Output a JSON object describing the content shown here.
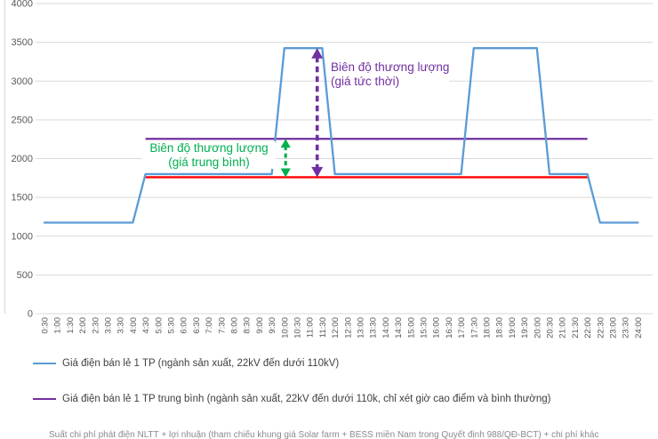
{
  "chart_data": {
    "type": "line",
    "title": "",
    "xlabel": "",
    "ylabel": "",
    "ylim": [
      0,
      4000
    ],
    "y_ticks": [
      0,
      500,
      1000,
      1500,
      2000,
      2500,
      3000,
      3500,
      4000
    ],
    "grid": true,
    "x_tick_labels": [
      "0:30",
      "1:00",
      "1:30",
      "2:00",
      "2:30",
      "3:00",
      "3:30",
      "4:00",
      "4:30",
      "5:00",
      "5:30",
      "6:00",
      "6:30",
      "7:00",
      "7:30",
      "8:00",
      "8:30",
      "9:00",
      "9:30",
      "10:00",
      "10:30",
      "11:00",
      "11:30",
      "12:00",
      "12:30",
      "13:00",
      "13:30",
      "14:00",
      "14:30",
      "15:00",
      "15:30",
      "16:00",
      "16:30",
      "17:00",
      "17:30",
      "18:00",
      "18:30",
      "19:00",
      "19:30",
      "20:00",
      "20:30",
      "21:00",
      "21:30",
      "22:00",
      "22:30",
      "23:00",
      "23:30",
      "24:00"
    ],
    "series": [
      {
        "name": "Giá điện bán lẻ 1 TP (ngành sản xuất, 22kV đến dưới 110kV)",
        "kind": "step-line",
        "color": "#5B9BD5",
        "values": [
          1175,
          1175,
          1175,
          1175,
          1175,
          1175,
          1175,
          1175,
          1800,
          1800,
          1800,
          1800,
          1800,
          1800,
          1800,
          1800,
          1800,
          1800,
          1800,
          3425,
          3425,
          3425,
          3425,
          1800,
          1800,
          1800,
          1800,
          1800,
          1800,
          1800,
          1800,
          1800,
          1800,
          1800,
          3425,
          3425,
          3425,
          3425,
          3425,
          3425,
          1800,
          1800,
          1800,
          1800,
          1175,
          1175,
          1175,
          1175
        ]
      },
      {
        "name": "Giá điện bán lẻ 1 TP trung bình (ngành sản xuất, 22kV đến dưới 110k, chỉ xét giờ cao điểm và bình thường)",
        "kind": "hline",
        "color": "#7030A0",
        "value": 2255,
        "span": [
          "4:30",
          "22:00"
        ]
      },
      {
        "name": "Suất chi phí phát điện NLTT + lợi nhuận (tham chiếu khung giá Solar farm + BESS miền Nam trong Quyết định 988/QĐ-BCT) + chi phí khác",
        "kind": "hline",
        "color": "#FF0000",
        "value": 1760,
        "span": [
          "4:30",
          "22:00"
        ]
      }
    ],
    "arrows": [
      {
        "name": "avg-range-arrow",
        "color": "#00B050",
        "x_index": 19.1,
        "from_value": 2255,
        "to_value": 1760,
        "stroke": 3.1,
        "dash": "5,3.5"
      },
      {
        "name": "instant-range-arrow",
        "color": "#7030A0",
        "x_index": 21.6,
        "from_value": 3425,
        "to_value": 1760,
        "stroke": 3.6,
        "dash": "6.5,4.5"
      }
    ],
    "legend_position": "bottom-left"
  },
  "annotations": {
    "avg": {
      "line1": "Biên độ thương lượng",
      "line2": "(giá trung bình)",
      "color": "#00B050"
    },
    "instant": {
      "line1": "Biên độ thương lượng",
      "line2": "(giá tức thời)",
      "color": "#7030A0"
    }
  },
  "legend": [
    {
      "label": "Giá điện bán lẻ 1 TP (ngành sản xuất, 22kV đến dưới 110kV)",
      "color": "#5B9BD5"
    },
    {
      "label": "Giá điện bán lẻ 1 TP trung bình (ngành sản xuất, 22kV đến dưới 110k, chỉ xét giờ cao điểm và bình thường)",
      "color": "#7030A0"
    },
    {
      "label": "Suất chi phí phát điện NLTT + lợi nhuận (tham chiếu khung giá Solar farm + BESS miền Nam trong Quyết định 988/QĐ-BCT) + chi phí khác",
      "color": "#FF0000"
    }
  ],
  "colors": {
    "gridline": "#D9D9D9",
    "axis_label": "#595959",
    "plot_border": "#D9D9D9",
    "background": "#FFFFFF"
  }
}
